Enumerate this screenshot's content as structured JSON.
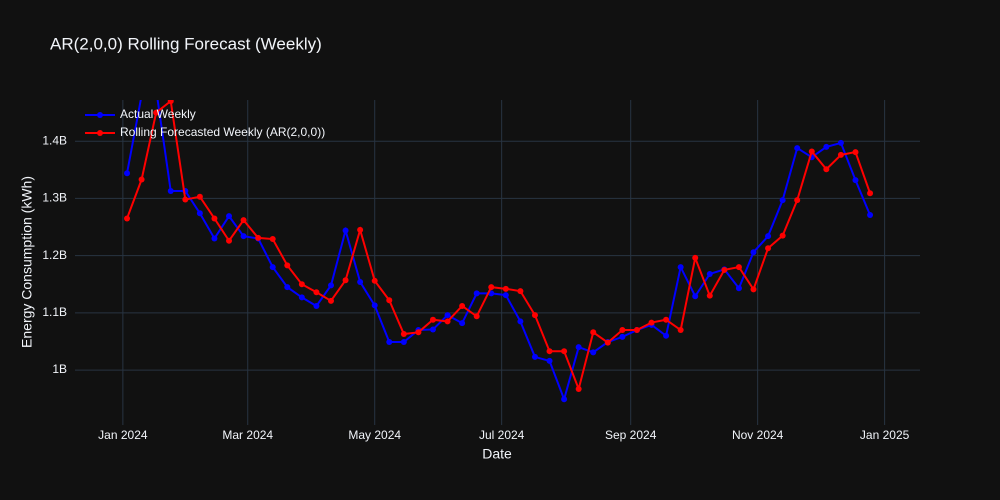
{
  "chart_data": {
    "type": "line",
    "title": "AR(2,0,0) Rolling Forecast (Weekly)",
    "x_label": "Date",
    "y_label": "Energy Consumption (kWh)",
    "x": [
      "2024-01-03",
      "2024-01-10",
      "2024-01-17",
      "2024-01-24",
      "2024-01-31",
      "2024-02-07",
      "2024-02-14",
      "2024-02-21",
      "2024-02-28",
      "2024-03-06",
      "2024-03-13",
      "2024-03-20",
      "2024-03-27",
      "2024-04-03",
      "2024-04-10",
      "2024-04-17",
      "2024-04-24",
      "2024-05-01",
      "2024-05-08",
      "2024-05-15",
      "2024-05-22",
      "2024-05-29",
      "2024-06-05",
      "2024-06-12",
      "2024-06-19",
      "2024-06-26",
      "2024-07-03",
      "2024-07-10",
      "2024-07-17",
      "2024-07-24",
      "2024-07-31",
      "2024-08-07",
      "2024-08-14",
      "2024-08-21",
      "2024-08-28",
      "2024-09-04",
      "2024-09-11",
      "2024-09-18",
      "2024-09-25",
      "2024-10-02",
      "2024-10-09",
      "2024-10-16",
      "2024-10-23",
      "2024-10-30",
      "2024-11-06",
      "2024-11-13",
      "2024-11-20",
      "2024-11-27",
      "2024-12-04",
      "2024-12-11",
      "2024-12-18",
      "2024-12-25"
    ],
    "series": [
      {
        "name": "Actual Weekly",
        "color": "#0000ff",
        "values": [
          1344000000.0,
          1480000000.0,
          1490000000.0,
          1313000000.0,
          1313000000.0,
          1274000000.0,
          1230000000.0,
          1269000000.0,
          1234000000.0,
          1230000000.0,
          1180000000.0,
          1145000000.0,
          1127000000.0,
          1112000000.0,
          1148000000.0,
          1244000000.0,
          1154000000.0,
          1113000000.0,
          1049000000.0,
          1049000000.0,
          1070000000.0,
          1071000000.0,
          1096000000.0,
          1082000000.0,
          1134000000.0,
          1134000000.0,
          1131000000.0,
          1085000000.0,
          1023000000.0,
          1016000000.0,
          949000000.0,
          1040000000.0,
          1031000000.0,
          1049000000.0,
          1058000000.0,
          1070000000.0,
          1079000000.0,
          1060000000.0,
          1180000000.0,
          1129000000.0,
          1168000000.0,
          1176000000.0,
          1143000000.0,
          1206000000.0,
          1234000000.0,
          1297000000.0,
          1388000000.0,
          1372000000.0,
          1390000000.0,
          1397000000.0,
          1332000000.0,
          1271000000.0
        ]
      },
      {
        "name": "Rolling Forecasted Weekly (AR(2,0,0))",
        "color": "#ff0000",
        "values": [
          1265000000.0,
          1333000000.0,
          1450000000.0,
          1470000000.0,
          1298000000.0,
          1303000000.0,
          1265000000.0,
          1226000000.0,
          1262000000.0,
          1231000000.0,
          1229000000.0,
          1183000000.0,
          1150000000.0,
          1136000000.0,
          1121000000.0,
          1157000000.0,
          1245000000.0,
          1156000000.0,
          1122000000.0,
          1063000000.0,
          1066000000.0,
          1088000000.0,
          1085000000.0,
          1112000000.0,
          1094000000.0,
          1145000000.0,
          1142000000.0,
          1138000000.0,
          1096000000.0,
          1033000000.0,
          1033000000.0,
          967000000.0,
          1066000000.0,
          1048000000.0,
          1070000000.0,
          1070000000.0,
          1083000000.0,
          1088000000.0,
          1070000000.0,
          1196000000.0,
          1130000000.0,
          1175000000.0,
          1180000000.0,
          1141000000.0,
          1213000000.0,
          1235000000.0,
          1297000000.0,
          1382000000.0,
          1351000000.0,
          1376000000.0,
          1381000000.0,
          1309000000.0
        ]
      }
    ],
    "xlim": [
      "2023-12-09",
      "2025-01-18"
    ],
    "xticks": [
      {
        "value": "2024-01-01",
        "label": "Jan 2024"
      },
      {
        "value": "2024-03-01",
        "label": "Mar 2024"
      },
      {
        "value": "2024-05-01",
        "label": "May 2024"
      },
      {
        "value": "2024-07-01",
        "label": "Jul 2024"
      },
      {
        "value": "2024-09-01",
        "label": "Sep 2024"
      },
      {
        "value": "2024-11-01",
        "label": "Nov 2024"
      },
      {
        "value": "2025-01-01",
        "label": "Jan 2025"
      }
    ],
    "ylim": [
      904000000.0,
      1472000000.0
    ],
    "yticks": [
      {
        "value": 1000000000.0,
        "label": "1B"
      },
      {
        "value": 1100000000.0,
        "label": "1.1B"
      },
      {
        "value": 1200000000.0,
        "label": "1.2B"
      },
      {
        "value": 1300000000.0,
        "label": "1.3B"
      },
      {
        "value": 1400000000.0,
        "label": "1.4B"
      }
    ],
    "grid": true,
    "legend": "top-left"
  }
}
